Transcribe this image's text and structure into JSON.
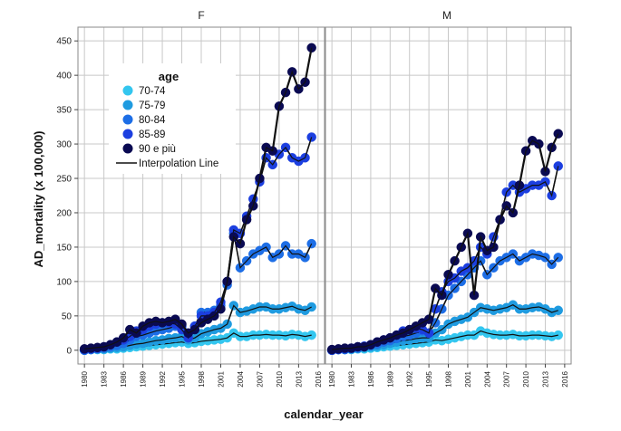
{
  "chart_data": {
    "type": "line",
    "xlabel": "calendar_year",
    "ylabel": "AD_mortality (x 100,000)",
    "ylim": [
      -20,
      470
    ],
    "xlim": [
      1979,
      2017
    ],
    "y_ticks": [
      "0",
      "50",
      "100",
      "150",
      "200",
      "250",
      "300",
      "350",
      "400",
      "450"
    ],
    "x_ticks": [
      "1980",
      "1983",
      "1986",
      "1989",
      "1992",
      "1995",
      "1998",
      "2001",
      "2004",
      "2007",
      "2010",
      "2013",
      "2016"
    ],
    "grid": true,
    "legend": {
      "title": "age",
      "position": "top-left",
      "items": [
        "70-74",
        "75-79",
        "80-84",
        "85-89",
        "90 e più"
      ],
      "line_label": "Interpolation Line"
    },
    "colors": {
      "70-74": "#33c6ef",
      "75-79": "#1f9be0",
      "80-84": "#1d6ee6",
      "85-89": "#1c3fe0",
      "90 e più": "#0a0a52",
      "interpolation": "#111111"
    },
    "panels": [
      {
        "title": "F",
        "years": [
          1980,
          1981,
          1982,
          1983,
          1984,
          1985,
          1986,
          1987,
          1988,
          1989,
          1990,
          1991,
          1992,
          1993,
          1994,
          1995,
          1996,
          1997,
          1998,
          1999,
          2000,
          2001,
          2002,
          2003,
          2004,
          2005,
          2006,
          2007,
          2008,
          2009,
          2010,
          2011,
          2012,
          2013,
          2014,
          2015
        ],
        "series": [
          {
            "name": "70-74",
            "values": [
              0,
              1,
              1,
              1,
              2,
              2,
              3,
              4,
              5,
              6,
              7,
              8,
              9,
              10,
              11,
              12,
              10,
              11,
              13,
              14,
              15,
              16,
              18,
              25,
              20,
              20,
              22,
              22,
              23,
              22,
              22,
              21,
              23,
              22,
              20,
              22
            ]
          },
          {
            "name": "75-79",
            "values": [
              0,
              1,
              2,
              2,
              3,
              4,
              5,
              7,
              9,
              10,
              12,
              14,
              15,
              17,
              18,
              20,
              15,
              18,
              24,
              27,
              30,
              32,
              38,
              65,
              55,
              57,
              60,
              63,
              63,
              60,
              60,
              62,
              64,
              60,
              58,
              63
            ]
          },
          {
            "name": "80-84",
            "values": [
              0,
              1,
              2,
              3,
              5,
              7,
              10,
              15,
              20,
              22,
              25,
              28,
              30,
              32,
              35,
              35,
              25,
              35,
              55,
              55,
              58,
              65,
              95,
              170,
              120,
              130,
              140,
              145,
              150,
              135,
              140,
              152,
              140,
              140,
              135,
              155
            ]
          },
          {
            "name": "85-89",
            "values": [
              1,
              2,
              3,
              5,
              8,
              12,
              15,
              20,
              28,
              30,
              35,
              38,
              40,
              40,
              38,
              30,
              18,
              35,
              50,
              50,
              55,
              70,
              100,
              175,
              170,
              195,
              220,
              245,
              280,
              270,
              285,
              295,
              280,
              275,
              280,
              310
            ]
          },
          {
            "name": "90 e più",
            "values": [
              2,
              3,
              4,
              5,
              8,
              12,
              18,
              30,
              25,
              35,
              40,
              42,
              40,
              42,
              45,
              38,
              25,
              30,
              40,
              45,
              50,
              60,
              100,
              165,
              155,
              190,
              210,
              250,
              295,
              290,
              355,
              375,
              405,
              380,
              390,
              440
            ]
          }
        ]
      },
      {
        "title": "M",
        "years": [
          1980,
          1981,
          1982,
          1983,
          1984,
          1985,
          1986,
          1987,
          1988,
          1989,
          1990,
          1991,
          1992,
          1993,
          1994,
          1995,
          1996,
          1997,
          1998,
          1999,
          2000,
          2001,
          2002,
          2003,
          2004,
          2005,
          2006,
          2007,
          2008,
          2009,
          2010,
          2011,
          2012,
          2013,
          2014,
          2015
        ],
        "series": [
          {
            "name": "70-74",
            "values": [
              0,
              1,
              1,
              1,
              2,
              2,
              3,
              4,
              5,
              6,
              7,
              8,
              9,
              10,
              11,
              12,
              15,
              14,
              16,
              18,
              20,
              22,
              22,
              28,
              25,
              23,
              22,
              22,
              23,
              21,
              21,
              22,
              22,
              21,
              20,
              22
            ]
          },
          {
            "name": "75-79",
            "values": [
              0,
              1,
              1,
              2,
              3,
              4,
              5,
              6,
              8,
              10,
              12,
              14,
              15,
              17,
              18,
              18,
              25,
              30,
              38,
              42,
              45,
              48,
              55,
              62,
              60,
              58,
              60,
              62,
              66,
              60,
              60,
              62,
              63,
              60,
              55,
              58
            ]
          },
          {
            "name": "80-84",
            "values": [
              0,
              1,
              1,
              2,
              3,
              5,
              7,
              9,
              12,
              14,
              17,
              20,
              22,
              25,
              28,
              25,
              40,
              60,
              80,
              90,
              100,
              110,
              120,
              130,
              110,
              120,
              130,
              135,
              140,
              130,
              135,
              140,
              138,
              135,
              125,
              135
            ]
          },
          {
            "name": "85-89",
            "values": [
              0,
              1,
              2,
              3,
              5,
              6,
              8,
              12,
              15,
              18,
              22,
              28,
              30,
              32,
              30,
              25,
              60,
              85,
              100,
              105,
              115,
              120,
              130,
              150,
              140,
              165,
              190,
              230,
              240,
              230,
              235,
              240,
              240,
              245,
              225,
              268
            ]
          },
          {
            "name": "90 e più",
            "values": [
              1,
              2,
              3,
              3,
              5,
              5,
              8,
              12,
              15,
              18,
              22,
              25,
              30,
              35,
              40,
              45,
              90,
              80,
              110,
              130,
              150,
              170,
              80,
              165,
              145,
              150,
              190,
              210,
              200,
              240,
              290,
              305,
              300,
              260,
              295,
              315
            ]
          }
        ]
      }
    ]
  }
}
